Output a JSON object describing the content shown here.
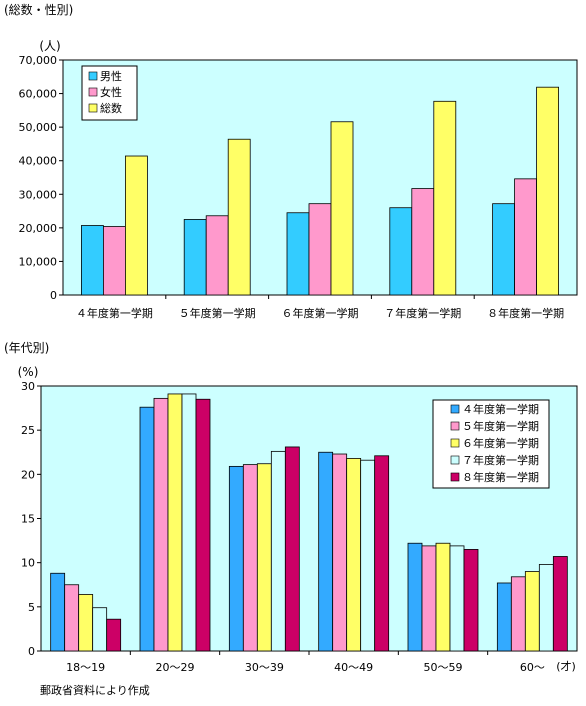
{
  "source_note": "郵政省資料により作成",
  "chart_data": [
    {
      "type": "bar",
      "heading": "(総数・性別)",
      "yunit": "(人)",
      "ylim": [
        0,
        70000
      ],
      "yticks": [
        "0",
        "10,000",
        "20,000",
        "30,000",
        "40,000",
        "50,000",
        "60,000",
        "70,000"
      ],
      "grid": false,
      "legend_position": "top-left",
      "categories": [
        "４年度第一学期",
        "５年度第一学期",
        "６年度第一学期",
        "７年度第一学期",
        "８年度第一学期"
      ],
      "series": [
        {
          "name": "男性",
          "color": "#33ccff",
          "values": [
            20700,
            22500,
            24500,
            26000,
            27200
          ]
        },
        {
          "name": "女性",
          "color": "#ff99cc",
          "values": [
            20400,
            23600,
            27200,
            31700,
            34600
          ]
        },
        {
          "name": "総数",
          "color": "#ffff66",
          "values": [
            41400,
            46400,
            51600,
            57700,
            61900
          ]
        }
      ]
    },
    {
      "type": "bar",
      "heading": "(年代別)",
      "yunit": "(%)",
      "xunit": "(才)",
      "ylim": [
        0,
        30
      ],
      "yticks": [
        "0",
        "5",
        "10",
        "15",
        "20",
        "25",
        "30"
      ],
      "grid": false,
      "legend_position": "top-right",
      "categories": [
        "18～19",
        "20～29",
        "30～39",
        "40～49",
        "50～59",
        "60～"
      ],
      "series": [
        {
          "name": "４年度第一学期",
          "color": "#33aaff",
          "values": [
            8.8,
            27.6,
            20.9,
            22.5,
            12.2,
            7.7
          ]
        },
        {
          "name": "５年度第一学期",
          "color": "#ff99cc",
          "values": [
            7.5,
            28.6,
            21.1,
            22.3,
            11.9,
            8.4
          ]
        },
        {
          "name": "６年度第一学期",
          "color": "#ffff66",
          "values": [
            6.4,
            29.1,
            21.2,
            21.8,
            12.2,
            9.0
          ]
        },
        {
          "name": "７年度第一学期",
          "color": "#ccffff",
          "values": [
            4.9,
            29.1,
            22.6,
            21.6,
            11.9,
            9.8
          ]
        },
        {
          "name": "８年度第一学期",
          "color": "#cc0066",
          "values": [
            3.6,
            28.5,
            23.1,
            22.1,
            11.5,
            10.7
          ]
        }
      ]
    }
  ]
}
